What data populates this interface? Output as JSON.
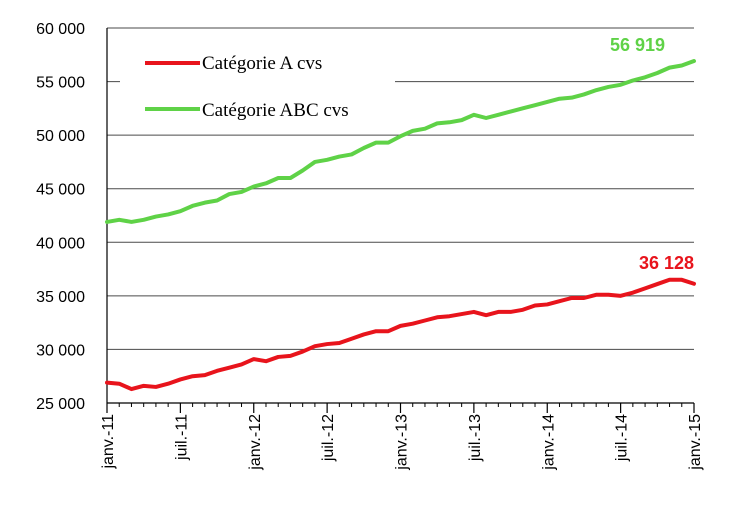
{
  "chart_data": {
    "type": "line",
    "x": [
      "2011-01",
      "2011-02",
      "2011-03",
      "2011-04",
      "2011-05",
      "2011-06",
      "2011-07",
      "2011-08",
      "2011-09",
      "2011-10",
      "2011-11",
      "2011-12",
      "2012-01",
      "2012-02",
      "2012-03",
      "2012-04",
      "2012-05",
      "2012-06",
      "2012-07",
      "2012-08",
      "2012-09",
      "2012-10",
      "2012-11",
      "2012-12",
      "2013-01",
      "2013-02",
      "2013-03",
      "2013-04",
      "2013-05",
      "2013-06",
      "2013-07",
      "2013-08",
      "2013-09",
      "2013-10",
      "2013-11",
      "2013-12",
      "2014-01",
      "2014-02",
      "2014-03",
      "2014-04",
      "2014-05",
      "2014-06",
      "2014-07",
      "2014-08",
      "2014-09",
      "2014-10",
      "2014-11",
      "2014-12",
      "2015-01"
    ],
    "xticks": [
      "janv.-11",
      "juil.-11",
      "janv.-12",
      "juil.-12",
      "janv.-13",
      "juil.-13",
      "janv.-14",
      "juil.-14",
      "janv.-15"
    ],
    "yticks": [
      "25 000",
      "30 000",
      "35 000",
      "40 000",
      "45 000",
      "50 000",
      "55 000",
      "60 000"
    ],
    "ylim": [
      25000,
      60000
    ],
    "grid": true,
    "legend_position": "top-left",
    "series": [
      {
        "name": "Catégorie A cvs",
        "color": "#e8141c",
        "end_label": "36 128",
        "values": [
          26900,
          26800,
          26300,
          26600,
          26500,
          26800,
          27200,
          27500,
          27600,
          28000,
          28300,
          28600,
          29100,
          28900,
          29300,
          29400,
          29800,
          30300,
          30500,
          30600,
          31000,
          31400,
          31700,
          31700,
          32200,
          32400,
          32700,
          33000,
          33100,
          33300,
          33500,
          33200,
          33500,
          33500,
          33700,
          34100,
          34200,
          34500,
          34800,
          34800,
          35100,
          35100,
          35000,
          35300,
          35700,
          36100,
          36500,
          36500,
          36128
        ]
      },
      {
        "name": "Catégorie ABC cvs",
        "color": "#5fd247",
        "end_label": "56 919",
        "values": [
          41900,
          42100,
          41900,
          42100,
          42400,
          42600,
          42900,
          43400,
          43700,
          43900,
          44500,
          44700,
          45200,
          45500,
          46000,
          46000,
          46700,
          47500,
          47700,
          48000,
          48200,
          48800,
          49300,
          49300,
          49900,
          50400,
          50600,
          51100,
          51200,
          51400,
          51900,
          51600,
          51900,
          52200,
          52500,
          52800,
          53100,
          53400,
          53500,
          53800,
          54200,
          54500,
          54700,
          55100,
          55400,
          55800,
          56300,
          56500,
          56919
        ]
      }
    ]
  }
}
